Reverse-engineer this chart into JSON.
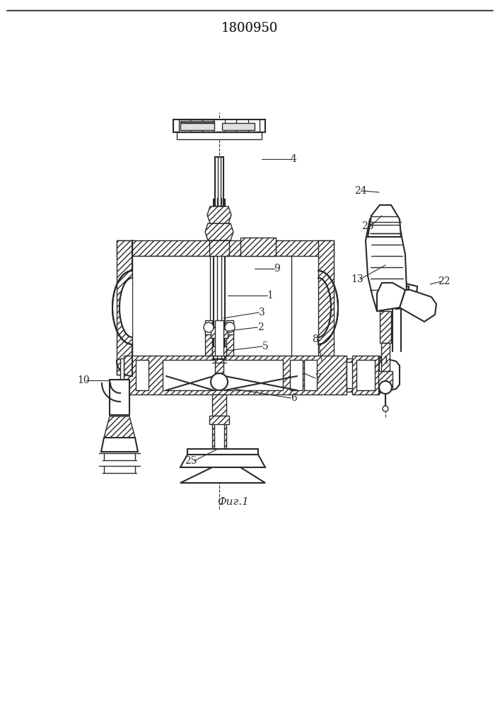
{
  "title": "1800950",
  "caption": "Фиг.1",
  "bg_color": "#ffffff",
  "line_color": "#2a2a2a",
  "title_fontsize": 13,
  "caption_fontsize": 11,
  "label_fontsize": 10,
  "figsize": [
    7.07,
    10.0
  ],
  "dpi": 100
}
